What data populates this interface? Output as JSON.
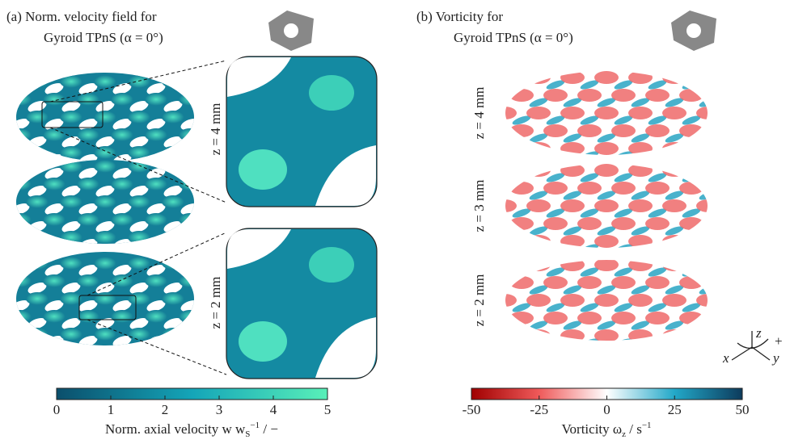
{
  "panel_a": {
    "title": [
      "(a) Norm. velocity field for",
      "Gyroid TPnS (α = 0°)"
    ],
    "zoom_labels": [
      "z = 4 mm",
      "z = 2 mm"
    ],
    "colorbar": {
      "ticks": [
        0,
        1,
        2,
        3,
        4,
        5
      ],
      "label": {
        "prefix": "Norm. axial velocity w w",
        "sub": "S",
        "sup": "−1",
        "suffix": " / −"
      }
    }
  },
  "panel_b": {
    "title": [
      "(b) Vorticity for",
      "Gyroid TPnS (α = 0°)"
    ],
    "slice_labels": [
      "z = 4 mm",
      "z = 3 mm",
      "z = 2 mm"
    ],
    "colorbar": {
      "ticks": [
        -50,
        -25,
        0,
        25,
        50
      ],
      "label": {
        "prefix": "Vorticity ω",
        "sub": "z",
        "mid": " / s",
        "sup": "−1"
      }
    }
  },
  "axes_triad": {
    "z": "z",
    "x": "x",
    "y": "y",
    "sign": "+"
  }
}
